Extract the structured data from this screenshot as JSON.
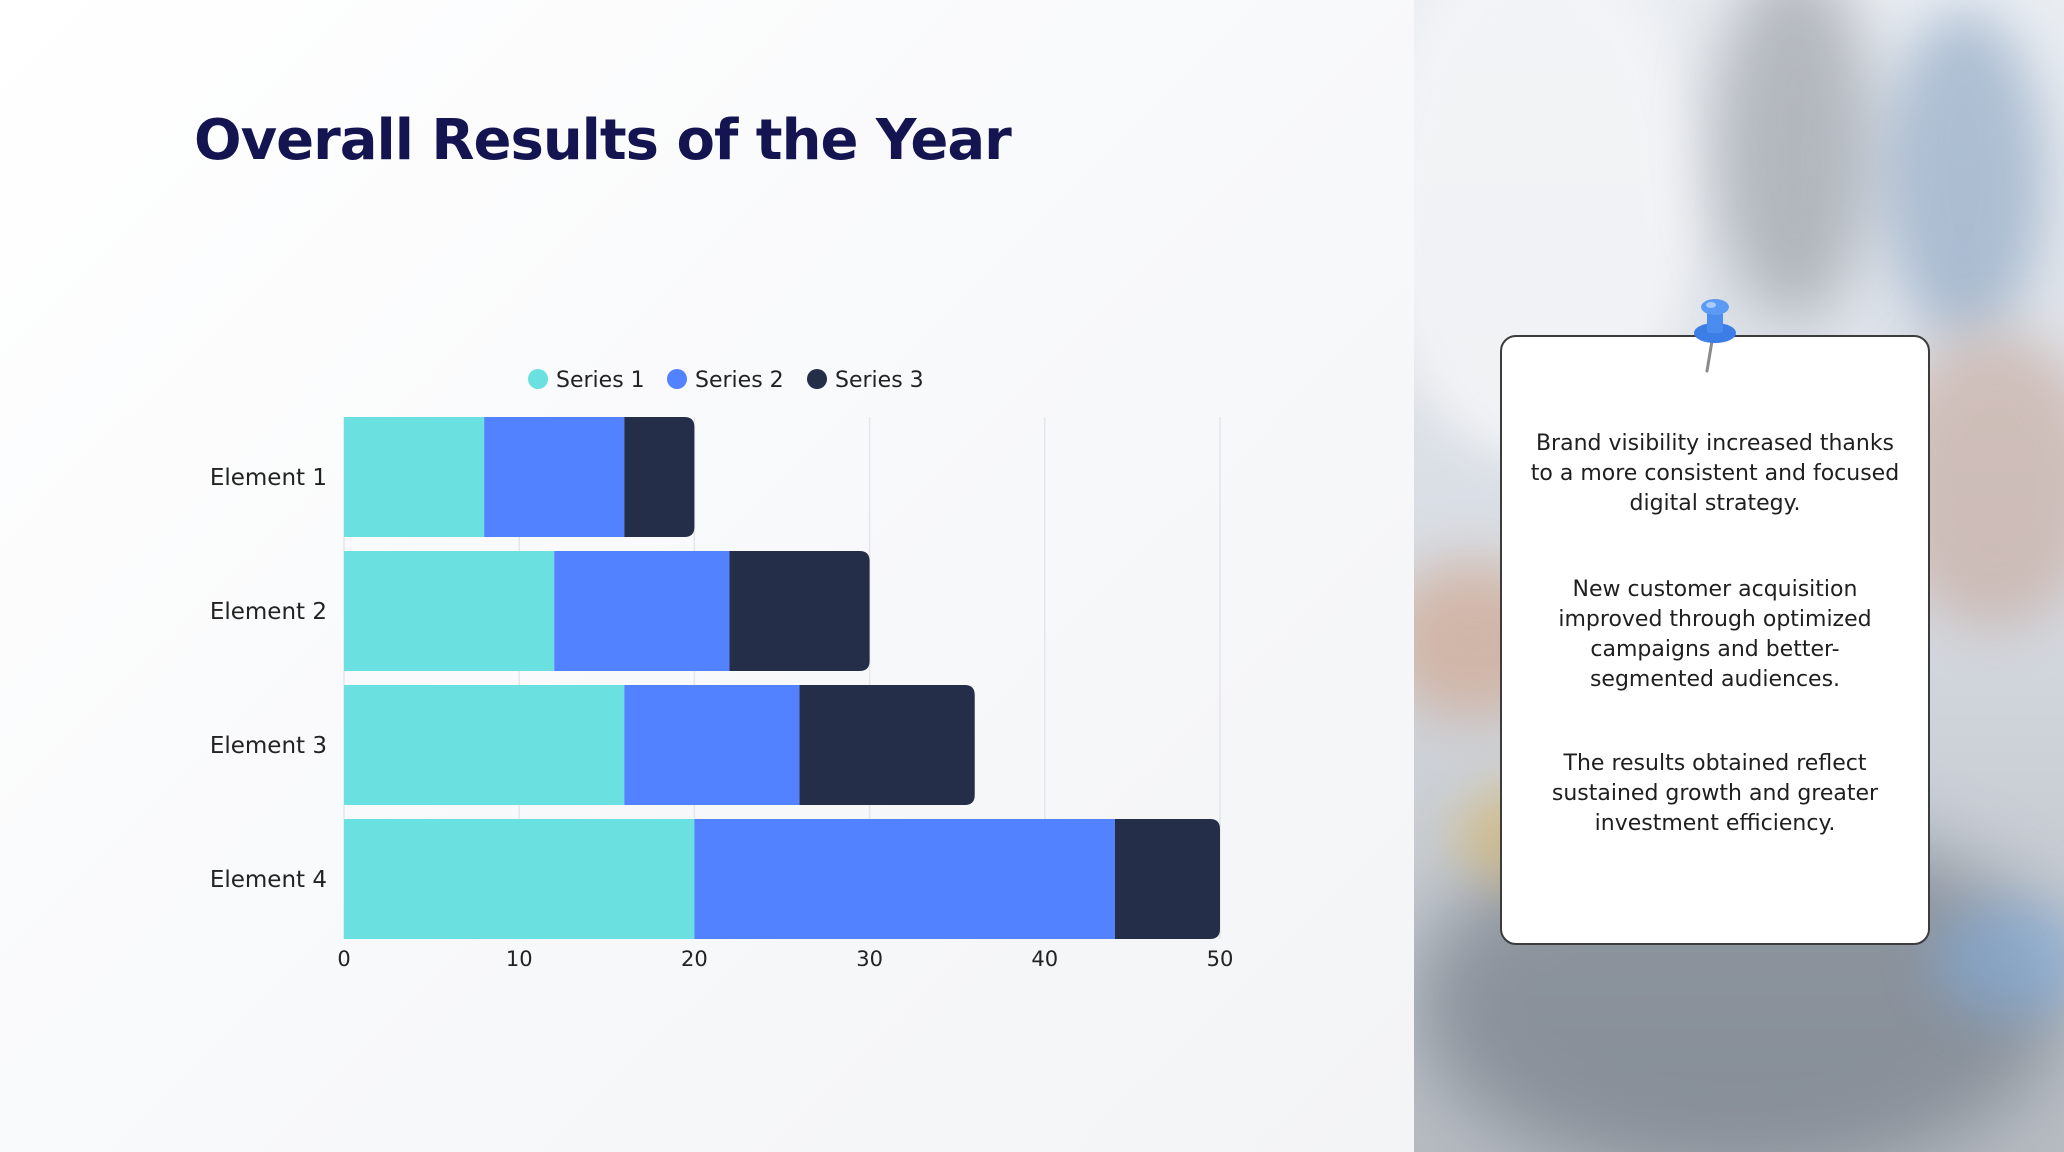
{
  "slide": {
    "title": "Overall Results of the Year"
  },
  "chart_data": {
    "type": "bar",
    "orientation": "horizontal",
    "stacked": true,
    "title": "",
    "categories": [
      "Element 1",
      "Element 2",
      "Element 3",
      "Element 4"
    ],
    "series": [
      {
        "name": "Series 1",
        "color": "#6ae0e0",
        "values": [
          8,
          12,
          16,
          20
        ]
      },
      {
        "name": "Series 2",
        "color": "#5282ff",
        "values": [
          8,
          10,
          10,
          24
        ]
      },
      {
        "name": "Series 3",
        "color": "#242e48",
        "values": [
          4,
          8,
          10,
          6
        ]
      }
    ],
    "xlim": [
      0,
      50
    ],
    "xticks": [
      0,
      10,
      20,
      30,
      40,
      50
    ],
    "xlabel": "",
    "ylabel": "",
    "grid": true,
    "legend_position": "top"
  },
  "card": {
    "paragraphs": [
      "Brand visibility increased thanks to a more consistent and focused digital strategy.",
      "New customer acquisition improved through optimized campaigns and better-segmented audiences.",
      "The results obtained reflect sustained growth and greater investment efficiency."
    ],
    "pin_icon": "pushpin-icon",
    "pin_color": "#3d7de6"
  }
}
